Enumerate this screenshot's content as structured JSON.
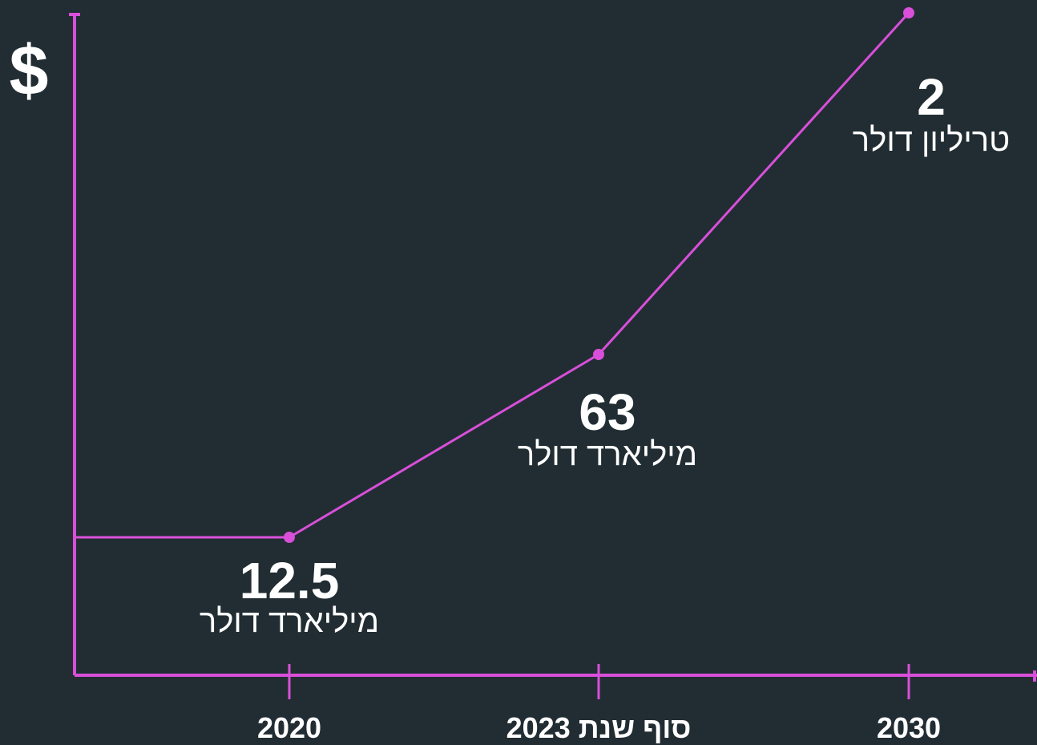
{
  "chart_data": {
    "type": "line",
    "y_symbol": "$",
    "categories": [
      "2020",
      "סוף שנת 2023",
      "2030"
    ],
    "points": [
      {
        "category": "2020",
        "value_label": "12.5",
        "unit_label": "מיליארד דולר",
        "value_usd_billions": 12.5
      },
      {
        "category": "סוף שנת 2023",
        "value_label": "63",
        "unit_label": "מיליארד דולר",
        "value_usd_billions": 63
      },
      {
        "category": "2030",
        "value_label": "2",
        "unit_label": "טריליון דולר",
        "value_usd_billions": 2000
      }
    ],
    "grid": false,
    "colors": {
      "background": "#212d33",
      "line": "#d94fd9",
      "text": "#ffffff"
    }
  }
}
